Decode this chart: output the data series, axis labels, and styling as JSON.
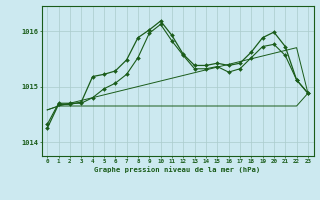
{
  "title": "Graphe pression niveau de la mer (hPa)",
  "xlabel_hours": [
    0,
    1,
    2,
    3,
    4,
    5,
    6,
    7,
    8,
    9,
    10,
    11,
    12,
    13,
    14,
    15,
    16,
    17,
    18,
    19,
    20,
    21,
    22,
    23
  ],
  "ylim": [
    1013.75,
    1016.45
  ],
  "yticks": [
    1014,
    1015,
    1016
  ],
  "background_color": "#cce9f0",
  "grid_color": "#aacccc",
  "line_color": "#1a5c1a",
  "series_jagged": [
    1014.25,
    1014.68,
    1014.68,
    1014.72,
    1015.18,
    1015.22,
    1015.28,
    1015.48,
    1015.88,
    1016.02,
    1016.18,
    1015.92,
    1015.58,
    1015.38,
    1015.38,
    1015.42,
    1015.38,
    1015.42,
    1015.62,
    1015.88,
    1015.98,
    1015.72,
    1015.12,
    1014.88
  ],
  "series_flat": [
    1014.58,
    1014.65,
    1014.65,
    1014.65,
    1014.65,
    1014.65,
    1014.65,
    1014.65,
    1014.65,
    1014.65,
    1014.65,
    1014.65,
    1014.65,
    1014.65,
    1014.65,
    1014.65,
    1014.65,
    1014.65,
    1014.65,
    1014.65,
    1014.65,
    1014.65,
    1014.65,
    1014.88
  ],
  "series_diagonal": [
    1014.58,
    1014.65,
    1014.7,
    1014.75,
    1014.8,
    1014.85,
    1014.9,
    1014.95,
    1015.0,
    1015.05,
    1015.1,
    1015.15,
    1015.2,
    1015.25,
    1015.3,
    1015.35,
    1015.4,
    1015.45,
    1015.5,
    1015.55,
    1015.6,
    1015.65,
    1015.7,
    1014.88
  ],
  "series_smooth": [
    1014.32,
    1014.7,
    1014.7,
    1014.7,
    1014.8,
    1014.96,
    1015.06,
    1015.22,
    1015.52,
    1015.96,
    1016.12,
    1015.82,
    1015.56,
    1015.32,
    1015.32,
    1015.36,
    1015.26,
    1015.32,
    1015.52,
    1015.72,
    1015.76,
    1015.56,
    1015.12,
    1014.88
  ],
  "marker_size": 2.0,
  "lw_jagged": 0.9,
  "lw_flat": 0.7,
  "lw_diagonal": 0.7,
  "lw_smooth": 0.8,
  "tick_fontsize": 4.2,
  "ytick_fontsize": 5.0,
  "xlabel_fontsize": 5.2
}
